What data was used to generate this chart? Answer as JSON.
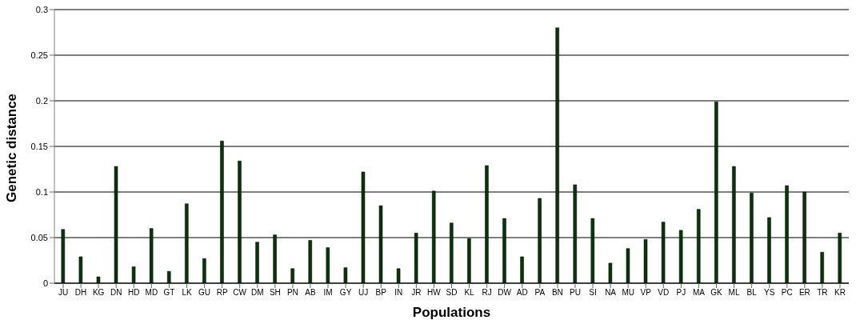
{
  "chart_data": {
    "type": "bar",
    "xlabel": "Populations",
    "ylabel": "Genetic distance",
    "categories": [
      "JU",
      "DH",
      "KG",
      "DN",
      "HD",
      "MD",
      "GT",
      "LK",
      "GU",
      "RP",
      "CW",
      "DM",
      "SH",
      "PN",
      "AB",
      "IM",
      "GY",
      "UJ",
      "BP",
      "IN",
      "JR",
      "HW",
      "SD",
      "KL",
      "RJ",
      "DW",
      "AD",
      "PA",
      "BN",
      "PU",
      "SI",
      "NA",
      "MU",
      "VP",
      "VD",
      "PJ",
      "MA",
      "GK",
      "ML",
      "BL",
      "YS",
      "PC",
      "ER",
      "TR",
      "KR"
    ],
    "values": [
      0.059,
      0.029,
      0.007,
      0.128,
      0.018,
      0.06,
      0.013,
      0.087,
      0.027,
      0.156,
      0.134,
      0.045,
      0.053,
      0.016,
      0.047,
      0.039,
      0.017,
      0.122,
      0.085,
      0.016,
      0.055,
      0.101,
      0.066,
      0.049,
      0.129,
      0.071,
      0.029,
      0.093,
      0.28,
      0.108,
      0.071,
      0.022,
      0.038,
      0.048,
      0.067,
      0.058,
      0.081,
      0.199,
      0.128,
      0.099,
      0.072,
      0.107,
      0.1,
      0.034,
      0.055
    ],
    "color": "#0b330b",
    "ylim": [
      0,
      0.3
    ],
    "yticks": [
      0,
      0.05,
      0.1,
      0.15,
      0.2,
      0.25,
      0.3
    ],
    "grid": "y",
    "legend": false
  }
}
